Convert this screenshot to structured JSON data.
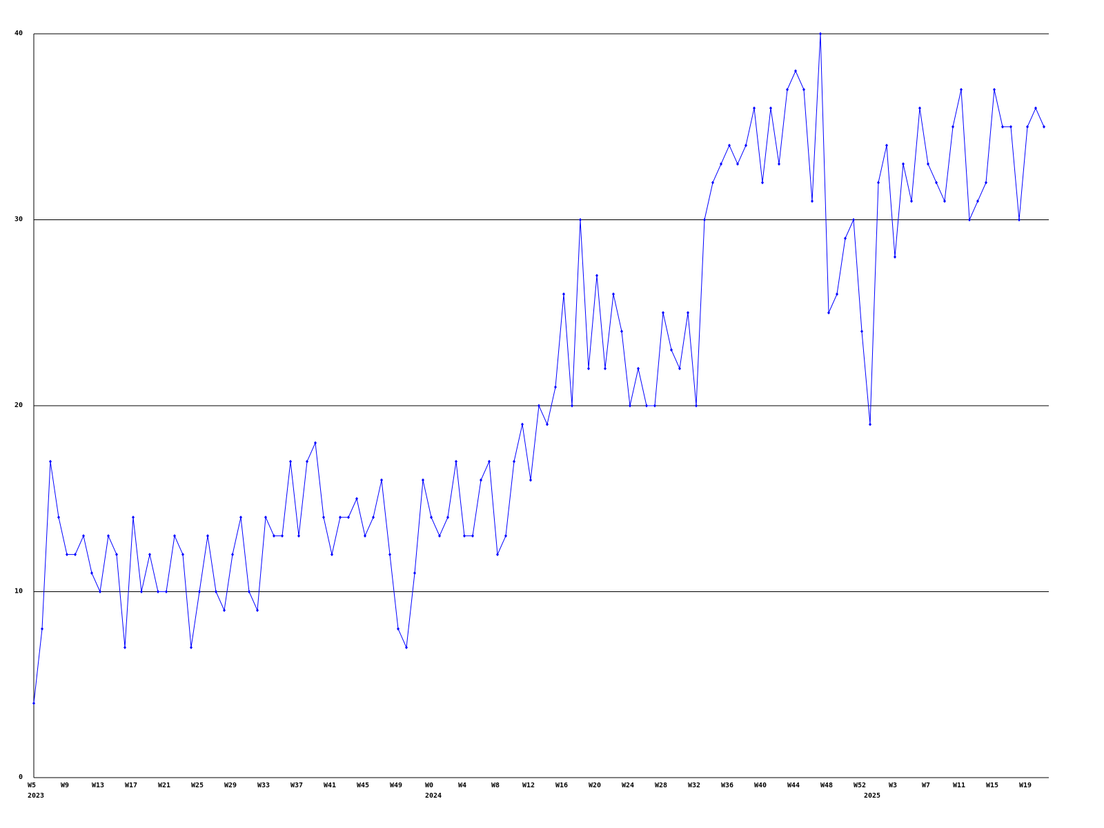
{
  "chart_data": {
    "type": "line",
    "categories": [
      "W5",
      null,
      null,
      null,
      "W9",
      null,
      null,
      null,
      "W13",
      null,
      null,
      null,
      "W17",
      null,
      null,
      null,
      "W21",
      null,
      null,
      null,
      "W25",
      null,
      null,
      null,
      "W29",
      null,
      null,
      null,
      "W33",
      null,
      null,
      null,
      "W37",
      null,
      null,
      null,
      "W41",
      null,
      null,
      null,
      "W45",
      null,
      null,
      null,
      "W49",
      null,
      null,
      null,
      "W0",
      null,
      null,
      null,
      "W4",
      null,
      null,
      null,
      "W8",
      null,
      null,
      null,
      "W12",
      null,
      null,
      null,
      "W16",
      null,
      null,
      null,
      "W20",
      null,
      null,
      null,
      "W24",
      null,
      null,
      null,
      "W28",
      null,
      null,
      null,
      "W32",
      null,
      null,
      null,
      "W36",
      null,
      null,
      null,
      "W40",
      null,
      null,
      null,
      "W44",
      null,
      null,
      null,
      "W48",
      null,
      null,
      null,
      "W52",
      null,
      null,
      null,
      "W3",
      null,
      null,
      null,
      "W7",
      null,
      null,
      null,
      "W11",
      null,
      null,
      null,
      "W15",
      null,
      null,
      null,
      "W19",
      null,
      null
    ],
    "years": [
      "2023",
      null,
      null,
      null,
      null,
      null,
      null,
      null,
      null,
      null,
      null,
      null,
      null,
      null,
      null,
      null,
      null,
      null,
      null,
      null,
      null,
      null,
      null,
      null,
      null,
      null,
      null,
      null,
      null,
      null,
      null,
      null,
      null,
      null,
      null,
      null,
      null,
      null,
      null,
      null,
      null,
      null,
      null,
      null,
      null,
      null,
      null,
      null,
      "2024",
      null,
      null,
      null,
      null,
      null,
      null,
      null,
      null,
      null,
      null,
      null,
      null,
      null,
      null,
      null,
      null,
      null,
      null,
      null,
      null,
      null,
      null,
      null,
      null,
      null,
      null,
      null,
      null,
      null,
      null,
      null,
      null,
      null,
      null,
      null,
      null,
      null,
      null,
      null,
      null,
      null,
      null,
      null,
      null,
      null,
      null,
      null,
      null,
      null,
      null,
      null,
      null,
      "2025",
      null,
      null,
      null,
      null,
      null,
      null,
      null,
      null,
      null,
      null,
      null,
      null,
      null,
      null,
      null,
      null,
      null,
      null,
      null,
      null,
      null
    ],
    "series": [
      {
        "color": "#0000ff",
        "values": [
          4,
          8,
          17,
          14,
          12,
          12,
          13,
          11,
          10,
          13,
          12,
          7,
          14,
          10,
          12,
          10,
          10,
          13,
          12,
          7,
          10,
          13,
          10,
          9,
          12,
          14,
          10,
          9,
          14,
          13,
          13,
          17,
          13,
          17,
          18,
          14,
          12,
          14,
          14,
          15,
          13,
          14,
          16,
          12,
          8,
          7,
          11,
          16,
          14,
          13,
          14,
          17,
          13,
          13,
          16,
          17,
          12,
          13,
          17,
          19,
          16,
          20,
          19,
          21,
          26,
          20,
          30,
          22,
          27,
          22,
          26,
          24,
          20,
          22,
          20,
          20,
          25,
          23,
          22,
          25,
          20,
          30,
          32,
          33,
          34,
          33,
          34,
          36,
          32,
          36,
          33,
          37,
          38,
          37,
          31,
          40,
          25,
          26,
          29,
          30,
          24,
          19,
          32,
          34,
          28,
          33,
          31,
          36,
          33,
          32,
          31,
          35,
          37,
          30,
          31,
          32,
          37,
          35,
          35,
          30,
          35,
          36,
          35
        ]
      }
    ],
    "ylim": [
      0,
      40
    ],
    "yticks": [
      0,
      10,
      20,
      30,
      40
    ],
    "grid": true
  }
}
